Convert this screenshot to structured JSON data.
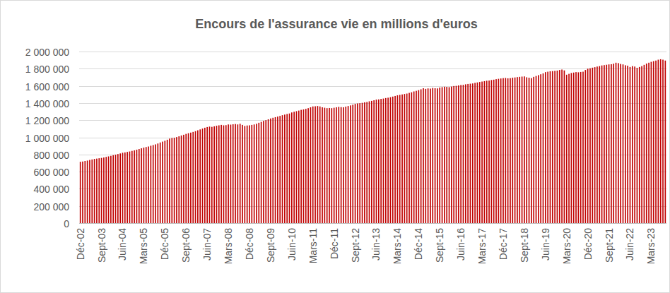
{
  "chart_data": {
    "type": "bar",
    "title": "Encours de l'assurance vie en millions d'euros",
    "categories": [
      "Déc-02",
      null,
      null,
      null,
      null,
      null,
      null,
      null,
      null,
      "Sept-03",
      null,
      null,
      null,
      null,
      null,
      null,
      null,
      null,
      "Juin-04",
      null,
      null,
      null,
      null,
      null,
      null,
      null,
      null,
      "Mars-05",
      null,
      null,
      null,
      null,
      null,
      null,
      null,
      null,
      "Déc-05",
      null,
      null,
      null,
      null,
      null,
      null,
      null,
      null,
      "Sept-06",
      null,
      null,
      null,
      null,
      null,
      null,
      null,
      null,
      "Juin-07",
      null,
      null,
      null,
      null,
      null,
      null,
      null,
      null,
      "Mars-08",
      null,
      null,
      null,
      null,
      null,
      null,
      null,
      null,
      "Déc-08",
      null,
      null,
      null,
      null,
      null,
      null,
      null,
      null,
      "Sept-09",
      null,
      null,
      null,
      null,
      null,
      null,
      null,
      null,
      "Juin-10",
      null,
      null,
      null,
      null,
      null,
      null,
      null,
      null,
      "Mars-11",
      null,
      null,
      null,
      null,
      null,
      null,
      null,
      null,
      "Déc-11",
      null,
      null,
      null,
      null,
      null,
      null,
      null,
      null,
      "Sept-12",
      null,
      null,
      null,
      null,
      null,
      null,
      null,
      null,
      "Juin-13",
      null,
      null,
      null,
      null,
      null,
      null,
      null,
      null,
      "Mars-14",
      null,
      null,
      null,
      null,
      null,
      null,
      null,
      null,
      "Déc-14",
      null,
      null,
      null,
      null,
      null,
      null,
      null,
      null,
      "Sept-15",
      null,
      null,
      null,
      null,
      null,
      null,
      null,
      null,
      "Juin-16",
      null,
      null,
      null,
      null,
      null,
      null,
      null,
      null,
      "Mars-17",
      null,
      null,
      null,
      null,
      null,
      null,
      null,
      null,
      "Déc-17",
      null,
      null,
      null,
      null,
      null,
      null,
      null,
      null,
      "Sept-18",
      null,
      null,
      null,
      null,
      null,
      null,
      null,
      null,
      "Juin-19",
      null,
      null,
      null,
      null,
      null,
      null,
      null,
      null,
      "Mars-20",
      null,
      null,
      null,
      null,
      null,
      null,
      null,
      null,
      "Déc-20",
      null,
      null,
      null,
      null,
      null,
      null,
      null,
      null,
      "Sept-21",
      null,
      null,
      null,
      null,
      null,
      null,
      null,
      null,
      "Juin-22",
      null,
      null,
      null,
      null,
      null,
      null,
      null,
      null,
      "Mars-23",
      null,
      null,
      null,
      null,
      null,
      null
    ],
    "values": [
      715000,
      718000,
      724000,
      729000,
      736000,
      742000,
      748000,
      752000,
      756000,
      760000,
      765000,
      772000,
      778000,
      784000,
      792000,
      798000,
      805000,
      812000,
      820000,
      824000,
      830000,
      835000,
      842000,
      848000,
      856000,
      864000,
      872000,
      880000,
      887000,
      893000,
      902000,
      910000,
      918000,
      928000,
      940000,
      950000,
      960000,
      972000,
      985000,
      992000,
      995000,
      1003000,
      1012000,
      1022000,
      1030000,
      1040000,
      1048000,
      1055000,
      1063000,
      1072000,
      1082000,
      1092000,
      1102000,
      1112000,
      1120000,
      1125000,
      1122000,
      1128000,
      1135000,
      1140000,
      1145000,
      1140000,
      1142000,
      1150000,
      1148000,
      1152000,
      1155000,
      1150000,
      1158000,
      1145000,
      1132000,
      1138000,
      1140000,
      1145000,
      1150000,
      1158000,
      1170000,
      1180000,
      1192000,
      1200000,
      1210000,
      1220000,
      1228000,
      1235000,
      1242000,
      1250000,
      1258000,
      1265000,
      1272000,
      1278000,
      1290000,
      1298000,
      1305000,
      1312000,
      1320000,
      1325000,
      1332000,
      1340000,
      1350000,
      1360000,
      1362000,
      1365000,
      1360000,
      1350000,
      1345000,
      1340000,
      1342000,
      1340000,
      1345000,
      1350000,
      1355000,
      1352000,
      1350000,
      1358000,
      1365000,
      1372000,
      1380000,
      1390000,
      1395000,
      1398000,
      1402000,
      1408000,
      1412000,
      1420000,
      1425000,
      1432000,
      1440000,
      1442000,
      1448000,
      1452000,
      1458000,
      1462000,
      1468000,
      1475000,
      1482000,
      1490000,
      1495000,
      1500000,
      1505000,
      1510000,
      1518000,
      1525000,
      1535000,
      1542000,
      1550000,
      1560000,
      1572000,
      1565000,
      1570000,
      1568000,
      1575000,
      1572000,
      1570000,
      1580000,
      1585000,
      1590000,
      1588000,
      1585000,
      1592000,
      1598000,
      1600000,
      1605000,
      1610000,
      1612000,
      1618000,
      1622000,
      1625000,
      1628000,
      1635000,
      1640000,
      1645000,
      1650000,
      1655000,
      1660000,
      1662000,
      1668000,
      1672000,
      1678000,
      1682000,
      1686000,
      1690000,
      1692000,
      1688000,
      1690000,
      1695000,
      1698000,
      1702000,
      1705000,
      1708000,
      1710000,
      1700000,
      1695000,
      1690000,
      1705000,
      1715000,
      1725000,
      1735000,
      1745000,
      1760000,
      1765000,
      1770000,
      1772000,
      1775000,
      1778000,
      1785000,
      1790000,
      1780000,
      1730000,
      1740000,
      1750000,
      1755000,
      1760000,
      1758000,
      1762000,
      1765000,
      1785000,
      1800000,
      1805000,
      1812000,
      1818000,
      1825000,
      1830000,
      1838000,
      1842000,
      1846000,
      1850000,
      1852000,
      1858000,
      1870000,
      1865000,
      1855000,
      1850000,
      1840000,
      1835000,
      1820000,
      1830000,
      1825000,
      1810000,
      1820000,
      1830000,
      1845000,
      1860000,
      1870000,
      1880000,
      1888000,
      1895000,
      1905000,
      1910000,
      1905000,
      1895000
    ],
    "color": "#c00000",
    "ylim": [
      0,
      2000000
    ],
    "yticks": [
      0,
      {
        "value": 200000,
        "label": "200 000"
      },
      {
        "value": 400000,
        "label": "400 000"
      },
      {
        "value": 600000,
        "label": "600 000"
      },
      {
        "value": 800000,
        "label": "800 000"
      },
      {
        "value": 1000000,
        "label": "1 000 000"
      },
      {
        "value": 1200000,
        "label": "1 200 000"
      },
      {
        "value": 1400000,
        "label": "1 400 000"
      },
      {
        "value": 1600000,
        "label": "1 600 000"
      },
      {
        "value": 1800000,
        "label": "1 800 000"
      },
      {
        "value": 2000000,
        "label": "2 000 000"
      }
    ],
    "grid": true
  }
}
